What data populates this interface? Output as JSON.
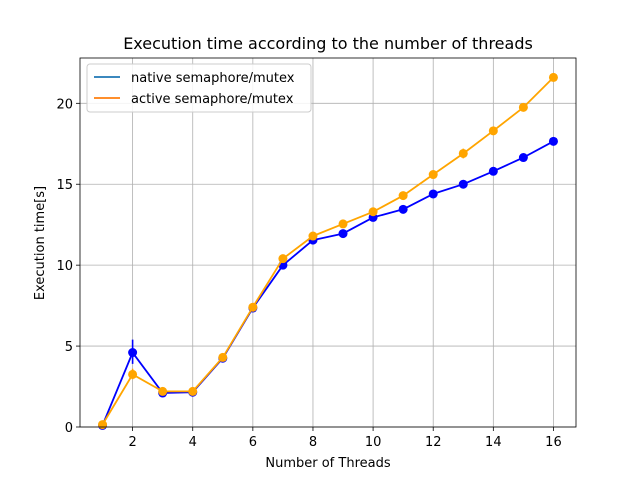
{
  "chart_data": {
    "type": "line",
    "title": "Execution time according to the number of threads",
    "xlabel": "Number of Threads",
    "ylabel": "Execution time[s]",
    "xlim": [
      0.25,
      16.75
    ],
    "ylim": [
      0,
      22.8
    ],
    "xticks": [
      2,
      4,
      6,
      8,
      10,
      12,
      14,
      16
    ],
    "yticks": [
      0,
      5,
      10,
      15,
      20
    ],
    "grid": true,
    "legend_position": "upper-left",
    "x": [
      1,
      2,
      3,
      4,
      5,
      6,
      7,
      8,
      9,
      10,
      11,
      12,
      13,
      14,
      15,
      16
    ],
    "series": [
      {
        "name": "native semaphore/mutex",
        "color": "#0000ff",
        "legend_color": "#1f77b4",
        "values": [
          0.1,
          4.6,
          2.1,
          2.15,
          4.25,
          7.35,
          10.0,
          11.55,
          11.95,
          12.95,
          13.45,
          14.4,
          15.0,
          15.8,
          16.65,
          17.65
        ],
        "error_bars": [
          {
            "x": 2,
            "low": 3.9,
            "high": 5.4
          },
          {
            "x": 4,
            "low": 2.0,
            "high": 2.45
          }
        ]
      },
      {
        "name": "active semaphore/mutex",
        "color": "#ffa500",
        "legend_color": "#ff7f0e",
        "values": [
          0.15,
          3.25,
          2.2,
          2.2,
          4.3,
          7.4,
          10.4,
          11.8,
          12.55,
          13.3,
          14.3,
          15.6,
          16.9,
          18.3,
          19.75,
          21.6
        ],
        "error_bars": [
          {
            "x": 2,
            "low": 2.95,
            "high": 3.6
          },
          {
            "x": 13,
            "low": 16.6,
            "high": 17.2
          }
        ]
      }
    ]
  }
}
